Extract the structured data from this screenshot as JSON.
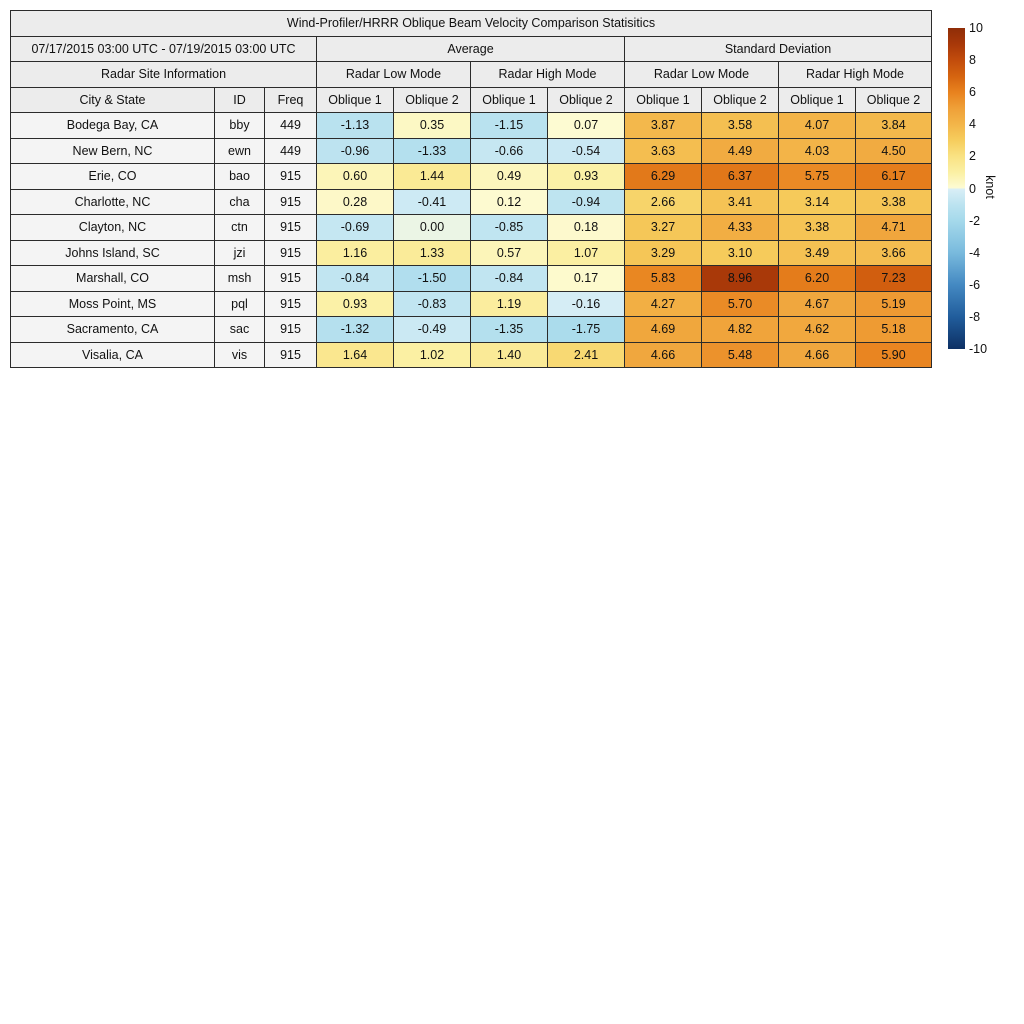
{
  "chart_data": {
    "type": "table",
    "title": "Wind-Profiler/HRRR Oblique Beam Velocity Comparison Statisitics",
    "date_range": "07/17/2015 03:00 UTC - 07/19/2015 03:00 UTC",
    "group_headers": [
      "Average",
      "Standard Deviation"
    ],
    "site_info_header": "Radar Site Information",
    "mode_headers": [
      "Radar Low Mode",
      "Radar High Mode",
      "Radar Low Mode",
      "Radar High Mode"
    ],
    "column_headers": [
      "City & State",
      "ID",
      "Freq",
      "Oblique 1",
      "Oblique 2",
      "Oblique 1",
      "Oblique 2",
      "Oblique 1",
      "Oblique 2",
      "Oblique 1",
      "Oblique 2"
    ],
    "rows": [
      {
        "city": "Bodega Bay, CA",
        "id": "bby",
        "freq": "449",
        "values": [
          "-1.13",
          "0.35",
          "-1.15",
          "0.07",
          "3.87",
          "3.58",
          "4.07",
          "3.84"
        ]
      },
      {
        "city": "New Bern, NC",
        "id": "ewn",
        "freq": "449",
        "values": [
          "-0.96",
          "-1.33",
          "-0.66",
          "-0.54",
          "3.63",
          "4.49",
          "4.03",
          "4.50"
        ]
      },
      {
        "city": "Erie, CO",
        "id": "bao",
        "freq": "915",
        "values": [
          "0.60",
          "1.44",
          "0.49",
          "0.93",
          "6.29",
          "6.37",
          "5.75",
          "6.17"
        ]
      },
      {
        "city": "Charlotte, NC",
        "id": "cha",
        "freq": "915",
        "values": [
          "0.28",
          "-0.41",
          "0.12",
          "-0.94",
          "2.66",
          "3.41",
          "3.14",
          "3.38"
        ]
      },
      {
        "city": "Clayton, NC",
        "id": "ctn",
        "freq": "915",
        "values": [
          "-0.69",
          "0.00",
          "-0.85",
          "0.18",
          "3.27",
          "4.33",
          "3.38",
          "4.71"
        ]
      },
      {
        "city": "Johns Island, SC",
        "id": "jzi",
        "freq": "915",
        "values": [
          "1.16",
          "1.33",
          "0.57",
          "1.07",
          "3.29",
          "3.10",
          "3.49",
          "3.66"
        ]
      },
      {
        "city": "Marshall, CO",
        "id": "msh",
        "freq": "915",
        "values": [
          "-0.84",
          "-1.50",
          "-0.84",
          "0.17",
          "5.83",
          "8.96",
          "6.20",
          "7.23"
        ]
      },
      {
        "city": "Moss Point, MS",
        "id": "pql",
        "freq": "915",
        "values": [
          "0.93",
          "-0.83",
          "1.19",
          "-0.16",
          "4.27",
          "5.70",
          "4.67",
          "5.19"
        ]
      },
      {
        "city": "Sacramento, CA",
        "id": "sac",
        "freq": "915",
        "values": [
          "-1.32",
          "-0.49",
          "-1.35",
          "-1.75",
          "4.69",
          "4.82",
          "4.62",
          "5.18"
        ]
      },
      {
        "city": "Visalia, CA",
        "id": "vis",
        "freq": "915",
        "values": [
          "1.64",
          "1.02",
          "1.40",
          "2.41",
          "4.66",
          "5.48",
          "4.66",
          "5.90"
        ]
      }
    ],
    "colorbar": {
      "unit": "knot",
      "min": -10,
      "max": 10,
      "tick_labels": [
        "10",
        "8",
        "6",
        "4",
        "2",
        "0",
        "-2",
        "-4",
        "-6",
        "-8",
        "-10"
      ],
      "tick_values": [
        10,
        8,
        6,
        4,
        2,
        0,
        -2,
        -4,
        -6,
        -8,
        -10
      ],
      "stops": [
        [
          -10,
          "#0d3064"
        ],
        [
          -8,
          "#215d9c"
        ],
        [
          -6,
          "#4489c2"
        ],
        [
          -4,
          "#79badd"
        ],
        [
          -2,
          "#a5d9eb"
        ],
        [
          -1,
          "#bce3f0"
        ],
        [
          -0.05,
          "#d8eef6"
        ],
        [
          0.05,
          "#fdfbd3"
        ],
        [
          1,
          "#fbf0a4"
        ],
        [
          2,
          "#f9e283"
        ],
        [
          3,
          "#f6cd5d"
        ],
        [
          4,
          "#f3b549"
        ],
        [
          5,
          "#efa038"
        ],
        [
          6,
          "#e8821e"
        ],
        [
          7,
          "#d56410"
        ],
        [
          8,
          "#c24c0c"
        ],
        [
          9,
          "#a83809"
        ],
        [
          10,
          "#8f2d08"
        ]
      ]
    },
    "colors": {
      "header_bg": "#ececec",
      "label_cell_bg": "#f4f4f4",
      "border": "#2b2b2b",
      "background": "#ffffff"
    }
  }
}
